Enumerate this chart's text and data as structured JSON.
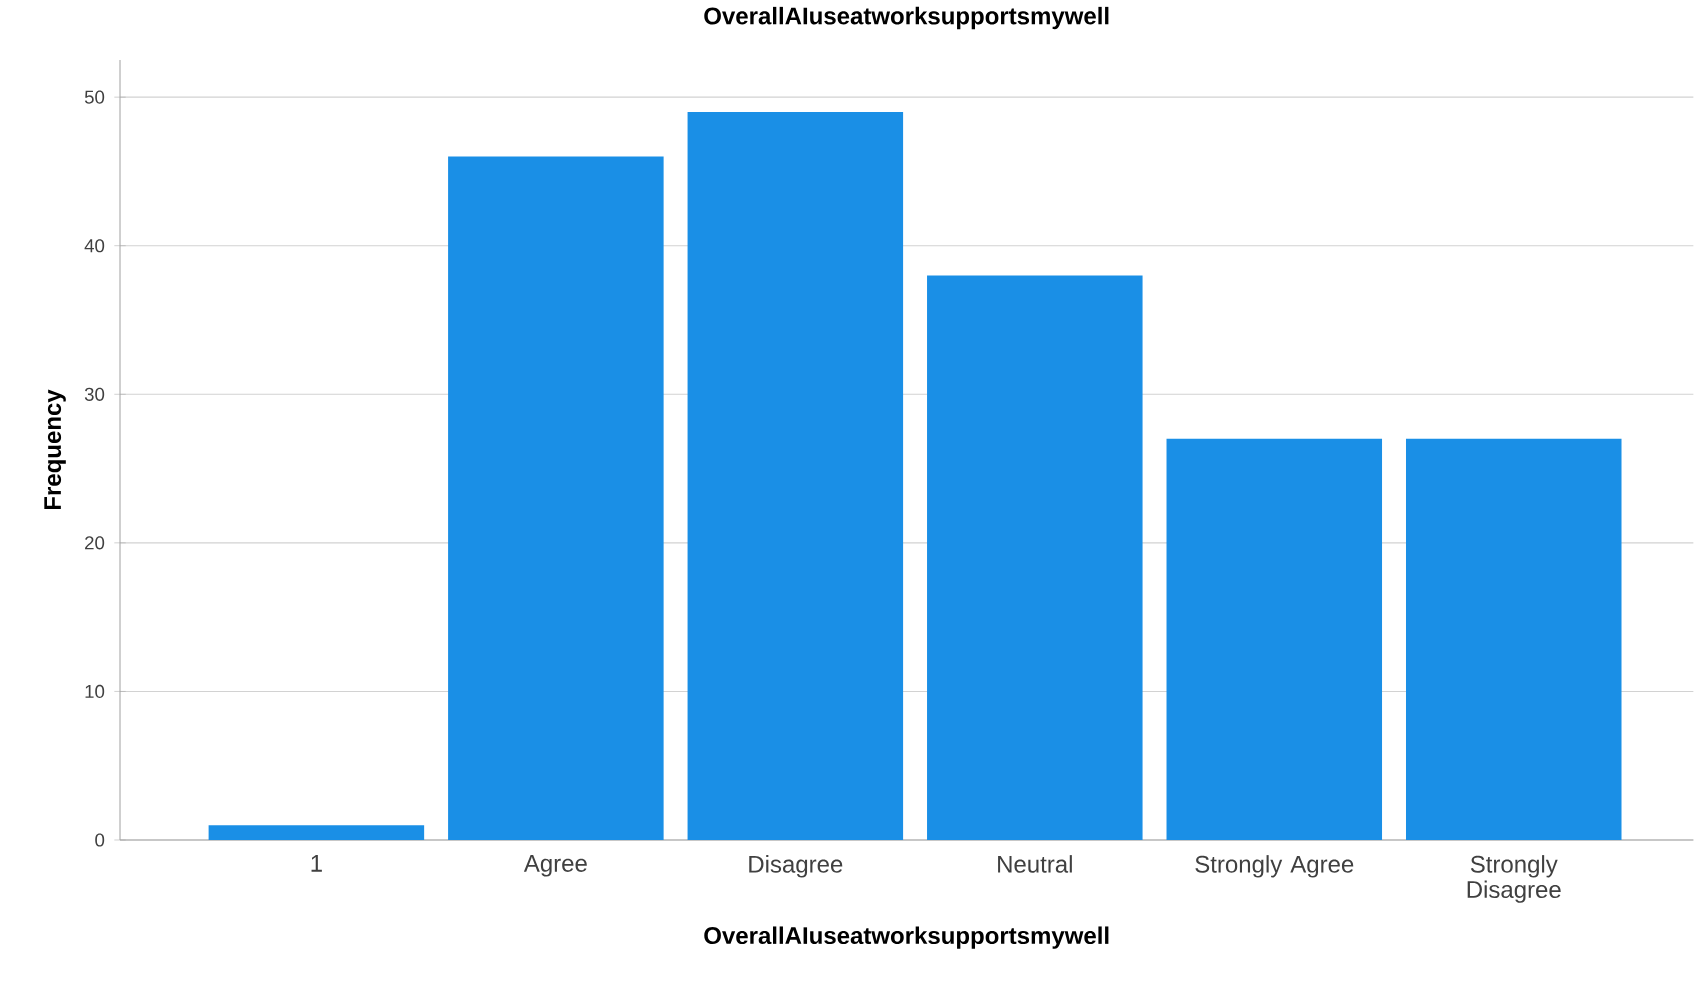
{
  "chart_data": {
    "type": "bar",
    "title": "OverallAIuseatworksupportsmywell",
    "xlabel": "OverallAIuseatworksupportsmywell",
    "ylabel": "Frequency",
    "categories": [
      "1",
      "Agree",
      "Disagree",
      "Neutral",
      "Strongly Agree",
      "Strongly Disagree"
    ],
    "values": [
      1,
      46,
      49,
      38,
      27,
      27
    ],
    "color": "#1a8fe6",
    "ylim": [
      0,
      52.5
    ],
    "yticks": [
      0,
      10,
      20,
      30,
      40,
      50
    ],
    "grid": "y"
  }
}
